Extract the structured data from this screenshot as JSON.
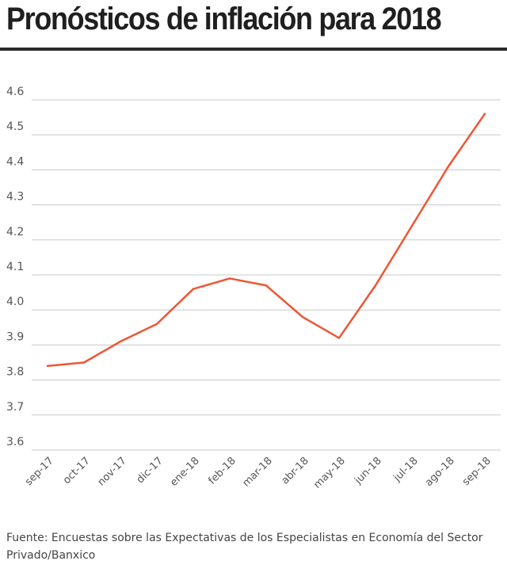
{
  "title": "Pronósticos de inflación para 2018",
  "source": "Fuente: Encuestas sobre las Expectativas de los Especialistas en Economía del Sector Privado/Banxico",
  "chart_data": {
    "type": "line",
    "title": "Pronósticos de inflación para 2018",
    "xlabel": "",
    "ylabel": "",
    "categories": [
      "sep-17",
      "oct-17",
      "nov-17",
      "dic-17",
      "ene-18",
      "feb-18",
      "mar-18",
      "abr-18",
      "may-18",
      "jun-18",
      "jul-18",
      "ago-18",
      "sep-18"
    ],
    "series": [
      {
        "values": [
          3.84,
          3.85,
          3.91,
          3.96,
          4.06,
          4.09,
          4.07,
          3.98,
          3.92,
          4.07,
          4.24,
          4.41,
          4.56
        ],
        "color": "#ef5533"
      }
    ],
    "yticks": [
      "3.6",
      "3.7",
      "3.8",
      "3.9",
      "4.0",
      "4.1",
      "4.2",
      "4.3",
      "4.4",
      "4.5",
      "4.6"
    ],
    "ylim": [
      3.6,
      4.6
    ],
    "grid": true,
    "legend": "none"
  }
}
